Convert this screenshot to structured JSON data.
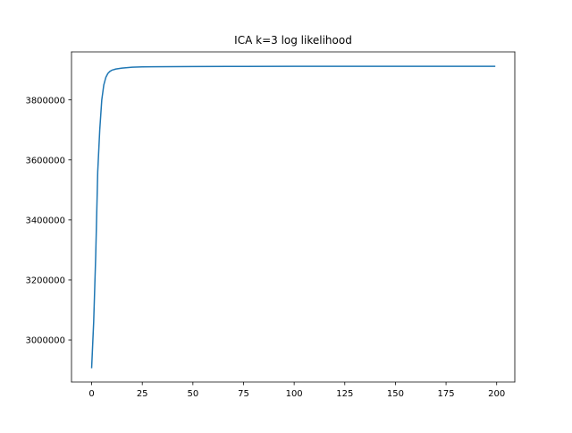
{
  "chart_data": {
    "type": "line",
    "title": "ICA k=3 log likelihood",
    "xlabel": "",
    "ylabel": "",
    "xlim": [
      -9.95,
      208.95
    ],
    "ylim": [
      2860000,
      3960000
    ],
    "xticks": [
      0,
      25,
      50,
      75,
      100,
      125,
      150,
      175,
      200
    ],
    "yticks": [
      3000000,
      3200000,
      3400000,
      3600000,
      3800000
    ],
    "grid": false,
    "legend": "none",
    "series": [
      {
        "color": "#1f77b4",
        "x": [
          0,
          1,
          2,
          3,
          4,
          5,
          6,
          7,
          8,
          9,
          10,
          12,
          15,
          20,
          25,
          30,
          40,
          50,
          75,
          100,
          125,
          150,
          175,
          199
        ],
        "y": [
          2908000,
          3060000,
          3280000,
          3560000,
          3700000,
          3800000,
          3850000,
          3875000,
          3888000,
          3895000,
          3899000,
          3903000,
          3906000,
          3909000,
          3910000,
          3910500,
          3911000,
          3911300,
          3911600,
          3911800,
          3911900,
          3912000,
          3912000,
          3912000
        ]
      }
    ]
  }
}
